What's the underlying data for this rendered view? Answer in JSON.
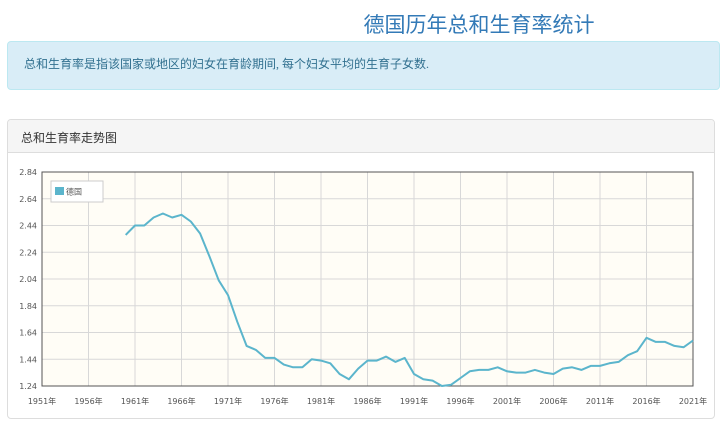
{
  "page": {
    "title": "德国历年总和生育率统计",
    "description": "总和生育率是指该国家或地区的妇女在育龄期间, 每个妇女平均的生育子女数."
  },
  "panel": {
    "heading": "总和生育率走势图"
  },
  "chart_data": {
    "type": "line",
    "title": "",
    "xlabel": "",
    "ylabel": "",
    "xlim": [
      1951,
      2021
    ],
    "ylim": [
      1.24,
      2.84
    ],
    "x_ticks": [
      "1951年",
      "1956年",
      "1961年",
      "1966年",
      "1971年",
      "1976年",
      "1981年",
      "1986年",
      "1991年",
      "1996年",
      "2001年",
      "2006年",
      "2011年",
      "2016年",
      "2021年"
    ],
    "y_ticks": [
      "2.84",
      "2.64",
      "2.44",
      "2.24",
      "2.04",
      "1.84",
      "1.64",
      "1.44",
      "1.24"
    ],
    "grid": true,
    "legend_position": "top-left",
    "series": [
      {
        "name": "德国",
        "color": "#5bb5cc",
        "x": [
          1960,
          1961,
          1962,
          1963,
          1964,
          1965,
          1966,
          1967,
          1968,
          1969,
          1970,
          1971,
          1972,
          1973,
          1974,
          1975,
          1976,
          1977,
          1978,
          1979,
          1980,
          1981,
          1982,
          1983,
          1984,
          1985,
          1986,
          1987,
          1988,
          1989,
          1990,
          1991,
          1992,
          1993,
          1994,
          1995,
          1996,
          1997,
          1998,
          1999,
          2000,
          2001,
          2002,
          2003,
          2004,
          2005,
          2006,
          2007,
          2008,
          2009,
          2010,
          2011,
          2012,
          2013,
          2014,
          2015,
          2016,
          2017,
          2018,
          2019,
          2020,
          2021
        ],
        "y": [
          2.37,
          2.44,
          2.44,
          2.5,
          2.53,
          2.5,
          2.52,
          2.47,
          2.38,
          2.21,
          2.03,
          1.92,
          1.72,
          1.54,
          1.51,
          1.45,
          1.45,
          1.4,
          1.38,
          1.38,
          1.44,
          1.43,
          1.41,
          1.33,
          1.29,
          1.37,
          1.43,
          1.43,
          1.46,
          1.42,
          1.45,
          1.33,
          1.29,
          1.28,
          1.24,
          1.25,
          1.3,
          1.35,
          1.36,
          1.36,
          1.38,
          1.35,
          1.34,
          1.34,
          1.36,
          1.34,
          1.33,
          1.37,
          1.38,
          1.36,
          1.39,
          1.39,
          1.41,
          1.42,
          1.47,
          1.5,
          1.6,
          1.57,
          1.57,
          1.54,
          1.53,
          1.58
        ]
      }
    ]
  }
}
